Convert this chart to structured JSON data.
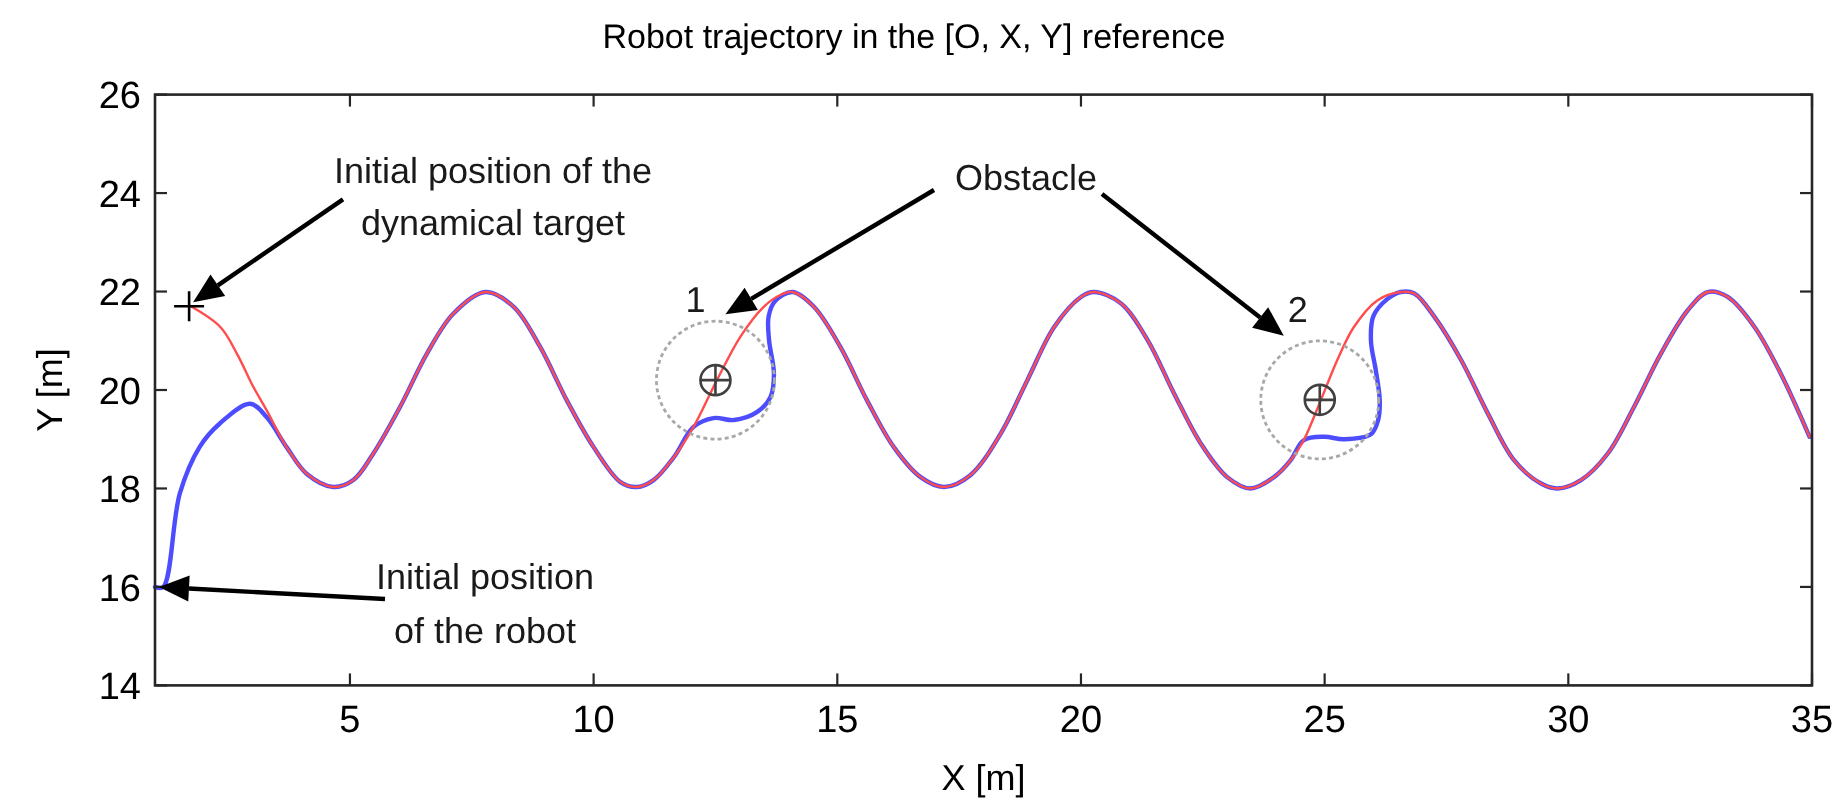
{
  "chart_data": {
    "type": "line",
    "title": "Robot trajectory in the [O, X, Y] reference",
    "xlabel": "X [m]",
    "ylabel": "Y [m]",
    "xlim": [
      1,
      35
    ],
    "ylim": [
      14,
      26
    ],
    "xticks": [
      5,
      10,
      15,
      20,
      25,
      30,
      35
    ],
    "yticks": [
      14,
      16,
      18,
      20,
      22,
      24,
      26
    ],
    "series": [
      {
        "color": "#4d4dff",
        "line_style": "solid",
        "x": [
          1.0,
          1.17,
          1.51,
          1.92,
          2.33,
          2.95,
          3.29,
          3.7,
          4.11,
          4.66,
          5.07,
          5.48,
          6.03,
          6.58,
          7.12,
          7.78,
          8.36,
          8.9,
          9.45,
          10.0,
          10.55,
          10.89,
          11.23,
          11.65,
          12.05,
          12.46,
          12.88,
          13.35,
          13.63,
          13.7,
          13.6,
          13.59,
          13.72,
          14.08,
          14.52,
          15.06,
          15.61,
          16.16,
          16.71,
          17.19,
          17.73,
          18.35,
          18.9,
          19.45,
          20.0,
          20.27,
          20.82,
          21.37,
          21.91,
          22.46,
          23.0,
          23.48,
          23.96,
          24.3,
          24.57,
          24.99,
          25.4,
          25.95,
          26.1,
          26.13,
          26.05,
          25.95,
          26.0,
          26.29,
          26.56,
          26.84,
          27.25,
          27.8,
          28.35,
          28.89,
          29.44,
          29.78,
          30.26,
          30.81,
          31.35,
          31.9,
          32.45,
          32.86,
          33.27,
          33.82,
          34.36,
          34.95
        ],
        "values": [
          16.0,
          16.0,
          17.9,
          18.85,
          19.32,
          19.72,
          19.45,
          18.84,
          18.3,
          18.03,
          18.17,
          18.71,
          19.66,
          20.74,
          21.55,
          21.99,
          21.69,
          20.88,
          19.79,
          18.84,
          18.13,
          18.03,
          18.17,
          18.64,
          19.25,
          19.43,
          19.39,
          19.55,
          19.86,
          20.33,
          21.01,
          21.49,
          21.8,
          21.99,
          21.69,
          20.88,
          19.79,
          18.84,
          18.23,
          18.03,
          18.27,
          19.11,
          20.2,
          21.28,
          21.89,
          21.99,
          21.76,
          21.01,
          19.93,
          18.91,
          18.23,
          18.0,
          18.23,
          18.57,
          18.98,
          19.05,
          19.0,
          19.1,
          19.4,
          19.8,
          20.4,
          21.0,
          21.5,
          21.85,
          21.99,
          21.96,
          21.49,
          20.61,
          19.52,
          18.57,
          18.1,
          18.0,
          18.17,
          18.71,
          19.66,
          20.74,
          21.62,
          21.99,
          21.89,
          21.28,
          20.33,
          19.05
        ]
      },
      {
        "color": "#ff4d4d",
        "line_style": "solid",
        "x": [
          1.7,
          2.34,
          2.68,
          3.02,
          3.29,
          3.7,
          4.11,
          4.66,
          5.07,
          5.48,
          6.03,
          6.58,
          7.12,
          7.78,
          8.36,
          8.9,
          9.45,
          10.0,
          10.55,
          10.89,
          11.23,
          11.65,
          12.05,
          12.53,
          13.01,
          13.49,
          13.83,
          14.08,
          14.52,
          15.06,
          15.61,
          16.16,
          16.71,
          17.19,
          17.73,
          18.35,
          18.9,
          19.45,
          20.0,
          20.27,
          20.82,
          21.37,
          21.91,
          22.46,
          23.0,
          23.48,
          23.96,
          24.3,
          24.57,
          24.92,
          25.26,
          25.6,
          26.08,
          26.56,
          26.84,
          27.25,
          27.8,
          28.35,
          28.89,
          29.44,
          29.78,
          30.26,
          30.81,
          31.35,
          31.9,
          32.45,
          32.86,
          33.27,
          33.82,
          34.36,
          34.95
        ],
        "values": [
          21.72,
          21.28,
          20.74,
          20.06,
          19.59,
          18.84,
          18.3,
          18.03,
          18.17,
          18.71,
          19.66,
          20.74,
          21.55,
          21.99,
          21.69,
          20.88,
          19.79,
          18.84,
          18.13,
          18.03,
          18.17,
          18.64,
          19.25,
          20.2,
          21.08,
          21.69,
          21.93,
          21.99,
          21.69,
          20.88,
          19.79,
          18.84,
          18.23,
          18.03,
          18.27,
          19.11,
          20.2,
          21.28,
          21.89,
          21.99,
          21.76,
          21.01,
          19.93,
          18.91,
          18.23,
          18.0,
          18.23,
          18.57,
          18.98,
          19.79,
          20.61,
          21.28,
          21.82,
          21.99,
          21.96,
          21.49,
          20.61,
          19.52,
          18.57,
          18.1,
          18.0,
          18.17,
          18.71,
          19.66,
          20.74,
          21.62,
          21.99,
          21.89,
          21.28,
          20.33,
          19.05
        ]
      },
      {
        "type": "bubble",
        "color": "#a8a8a8",
        "line_style": "dotted",
        "x": [
          12.5,
          24.9
        ],
        "values": [
          20.2,
          19.8
        ],
        "sizes": [
          1,
          1
        ]
      },
      {
        "type": "scatter",
        "color": "#404040",
        "marker": "circle",
        "x": [
          12.5,
          24.9
        ],
        "values": [
          20.2,
          19.8
        ]
      },
      {
        "type": "scatter",
        "color": "#404040",
        "marker": "cross",
        "x": [
          12.5,
          24.9
        ],
        "values": [
          20.2,
          19.8
        ]
      },
      {
        "type": "scatter",
        "color": "#000000",
        "marker": "cross",
        "x": [
          1.7
        ],
        "values": [
          21.7
        ]
      }
    ],
    "annotations": [
      "Initial position of the\ndynamical target",
      "Initial position\nof the robot",
      "Obstacle",
      {
        "text": "1",
        "x": 12.5,
        "y": 20.2
      },
      {
        "text": "2",
        "x": 24.9,
        "y": 19.8
      }
    ]
  }
}
